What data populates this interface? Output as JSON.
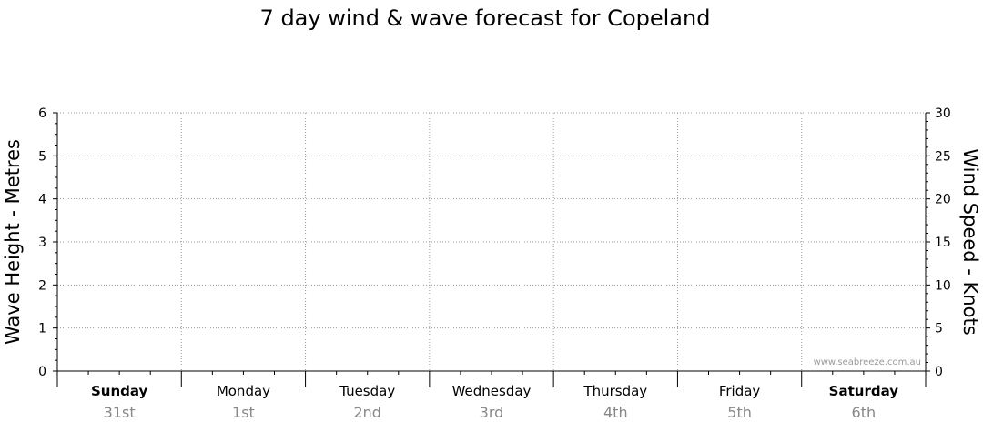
{
  "chart_data": {
    "type": "line",
    "title": "7 day wind & wave forecast for Copeland",
    "ylabel_left": "Wave Height - Metres",
    "ylabel_right": "Wind Speed - Knots",
    "ylim_left": [
      0,
      6
    ],
    "ylim_right": [
      0,
      30
    ],
    "yticks_left": [
      "0",
      "1",
      "2",
      "3",
      "4",
      "5",
      "6"
    ],
    "yticks_right": [
      "0",
      "5",
      "10",
      "15",
      "20",
      "25",
      "30"
    ],
    "grid": true,
    "days": [
      {
        "name": "Sunday",
        "date": "31st",
        "bold": true
      },
      {
        "name": "Monday",
        "date": "1st",
        "bold": false
      },
      {
        "name": "Tuesday",
        "date": "2nd",
        "bold": false
      },
      {
        "name": "Wednesday",
        "date": "3rd",
        "bold": false
      },
      {
        "name": "Thursday",
        "date": "4th",
        "bold": false
      },
      {
        "name": "Friday",
        "date": "5th",
        "bold": false
      },
      {
        "name": "Saturday",
        "date": "6th",
        "bold": true
      }
    ],
    "series": []
  },
  "watermark": "www.seabreeze.com.au"
}
